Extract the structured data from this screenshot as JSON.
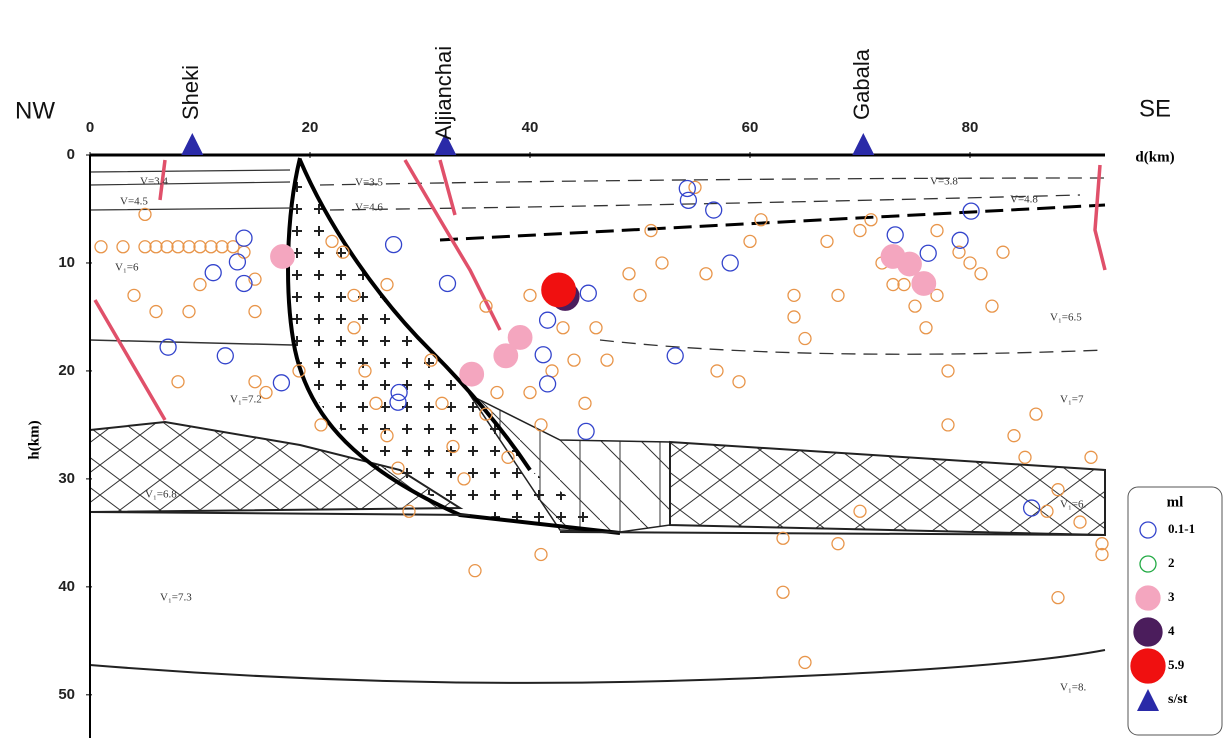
{
  "chart_data": {
    "type": "scatter",
    "left_label": "NW",
    "right_label": "SE",
    "xlabel": "d(km)",
    "ylabel": "h(km)",
    "xlim": [
      0,
      92
    ],
    "xticks": [
      0,
      20,
      40,
      60,
      80
    ],
    "ylim": [
      54,
      0
    ],
    "yticks": [
      0,
      10,
      20,
      30,
      40,
      50
    ],
    "legend_title": "ml",
    "stations_label": "s/st",
    "stations_color": "#2a2aa8",
    "stations": [
      {
        "name": "Sheki",
        "x": 9.3
      },
      {
        "name": "Aljianchai",
        "x": 32.3
      },
      {
        "name": "Gabala",
        "x": 70.3
      }
    ],
    "background": {
      "color": "#e8954a",
      "x": [
        1,
        3,
        5,
        5,
        6,
        7,
        8,
        9,
        10,
        11,
        12,
        13,
        4,
        6,
        9,
        10,
        14,
        15,
        15,
        8,
        15,
        16,
        19,
        21,
        22,
        23,
        24,
        24,
        25,
        26,
        27,
        27,
        28,
        29,
        31,
        32,
        33,
        34,
        35,
        36,
        36,
        37,
        38,
        39,
        40,
        40,
        41,
        41,
        42,
        43,
        44,
        45,
        46,
        47,
        49,
        50,
        51,
        52,
        55,
        56,
        57,
        59,
        60,
        61,
        64,
        64,
        63,
        63,
        65,
        67,
        68,
        68,
        70,
        71,
        72,
        73,
        74,
        75,
        76,
        77,
        77,
        78,
        79,
        80,
        81,
        82,
        83,
        84,
        85,
        86,
        87,
        88,
        90,
        91,
        92,
        92,
        88,
        78,
        70,
        65
      ],
      "y": [
        8.5,
        8.5,
        5.5,
        8.5,
        8.5,
        8.5,
        8.5,
        8.5,
        8.5,
        8.5,
        8.5,
        8.5,
        13,
        14.5,
        14.5,
        12,
        9,
        11.5,
        14.5,
        21,
        21,
        22,
        20,
        25,
        8,
        9,
        13,
        16,
        20,
        23,
        12,
        26,
        29,
        33,
        19,
        23,
        27,
        30,
        38.5,
        14,
        24,
        22,
        28,
        17,
        13,
        22,
        25,
        37,
        20,
        16,
        19,
        23,
        16,
        19,
        11,
        13,
        7,
        10,
        3,
        11,
        20,
        21,
        8,
        6,
        13,
        15,
        35.5,
        40.5,
        17,
        8,
        13,
        36,
        7,
        6,
        10,
        12,
        12,
        14,
        16,
        7,
        13,
        20,
        9,
        10,
        11,
        14,
        9,
        26,
        28,
        24,
        33,
        31,
        34,
        28,
        36,
        37,
        41,
        25,
        33,
        47
      ]
    },
    "series": [
      {
        "name": "0.1-1",
        "color": "#3344cc",
        "marker": "open",
        "size": 8,
        "x": [
          11.2,
          14,
          14,
          13.4,
          7.1,
          12.3,
          17.4,
          27.6,
          32.5,
          28.1,
          28,
          54.3,
          54.4,
          56.7,
          58.2,
          53.2,
          41.6,
          41.2,
          41.6,
          45.3,
          45.1,
          73.2,
          76.2,
          79.1,
          80.1,
          85.6
        ],
        "y": [
          10.9,
          7.7,
          11.9,
          9.9,
          17.8,
          18.6,
          21.1,
          8.3,
          11.9,
          22,
          22.9,
          3.1,
          4.2,
          5.1,
          10,
          18.6,
          15.3,
          18.5,
          21.2,
          12.8,
          25.6,
          7.4,
          9.1,
          7.9,
          5.2,
          32.7
        ]
      },
      {
        "name": "2",
        "color": "#22aa44",
        "marker": "open",
        "size": 8,
        "x": [],
        "y": []
      },
      {
        "name": "3",
        "color": "#f4a6bf",
        "marker": "filled",
        "size": 12,
        "x": [
          17.5,
          34.7,
          37.8,
          39.1,
          73,
          74.5,
          75.8
        ],
        "y": [
          9.4,
          20.3,
          18.6,
          16.9,
          9.4,
          10.1,
          11.9
        ]
      },
      {
        "name": "4",
        "color": "#4b1d5c",
        "marker": "filled",
        "size": 14,
        "x": [
          43.2
        ],
        "y": [
          13.1
        ]
      },
      {
        "name": "5.9",
        "color": "#f01010",
        "marker": "filled",
        "size": 17,
        "x": [
          42.6
        ],
        "y": [
          12.5
        ]
      }
    ],
    "annotations": [
      "V=3.4",
      "V=4.5",
      "V=3.5",
      "V=4.6",
      "V=3.8",
      "V=4.8",
      "V₁=6",
      "V₁=6.5",
      "V₁=7.2",
      "V₁=7",
      "V₁=6.8",
      "V₁=6.",
      "V₁=7.3",
      "V₁=8."
    ]
  }
}
